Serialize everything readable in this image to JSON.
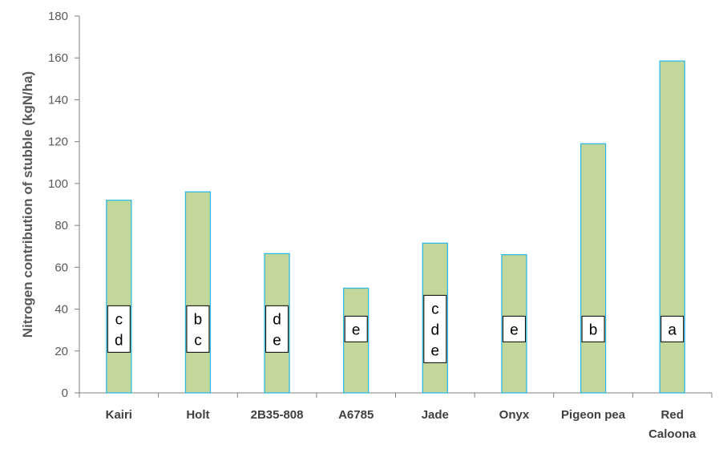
{
  "chart_data": {
    "type": "bar",
    "title": "",
    "xlabel": "",
    "ylabel": "Nitrogen contribution of stubble (kgN/ha)",
    "ylim": [
      0,
      180
    ],
    "yticks": [
      0,
      20,
      40,
      60,
      80,
      100,
      120,
      140,
      160,
      180
    ],
    "categories": [
      [
        "Kairi"
      ],
      [
        "Holt"
      ],
      [
        "2B35-808"
      ],
      [
        "A6785"
      ],
      [
        "Jade"
      ],
      [
        "Onyx"
      ],
      [
        "Pigeon pea"
      ],
      [
        "Red",
        "Caloona"
      ]
    ],
    "values": [
      92,
      96,
      66.5,
      50,
      71.5,
      66,
      119,
      158.5
    ],
    "significance_groups": [
      [
        "c",
        "d"
      ],
      [
        "b",
        "c"
      ],
      [
        "d",
        "e"
      ],
      [
        "e"
      ],
      [
        "c",
        "d",
        "e"
      ],
      [
        "e"
      ],
      [
        "b"
      ],
      [
        "a"
      ]
    ],
    "grid": false,
    "legend": "none",
    "colors": {
      "bar_fill": "#c4d79b",
      "bar_stroke": "#31b7e3",
      "axis": "#808080",
      "label_box_fill": "#ffffff",
      "label_box_stroke": "#000000"
    }
  }
}
